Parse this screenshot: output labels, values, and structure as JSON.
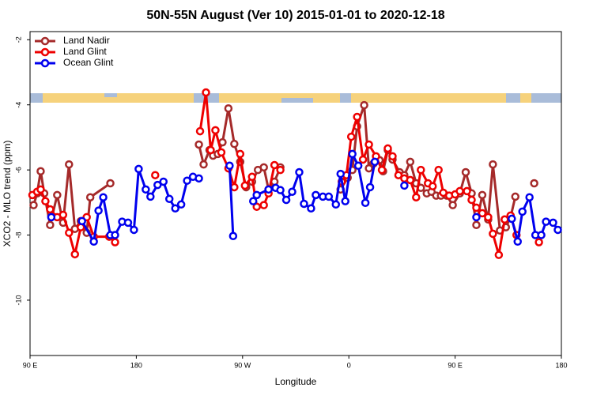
{
  "chart_data": {
    "type": "line",
    "title": "50N-55N August (Ver 10)   2015-01-01 to 2020-12-18",
    "x_label": "Longitude",
    "y_label": "XCO2 - MLO trend (ppm)",
    "xlim": [
      90,
      540
    ],
    "ylim": [
      -11.7,
      -1.75
    ],
    "xticks": [
      {
        "value": 90,
        "label": "90 E"
      },
      {
        "value": 180,
        "label": "180"
      },
      {
        "value": 270,
        "label": "90 W"
      },
      {
        "value": 360,
        "label": "0"
      },
      {
        "value": 450,
        "label": "90 E"
      },
      {
        "value": 540,
        "label": "180"
      }
    ],
    "yticks": [
      -2,
      -4,
      -6,
      -8,
      -10
    ],
    "legend": "top-left",
    "series": [
      {
        "name": "Land Nadir",
        "color": "#a52a2a",
        "x": [
          93,
          96,
          99,
          102,
          107,
          113,
          118,
          123,
          128,
          133,
          138,
          141,
          158,
          null,
          233,
          237,
          242,
          245,
          249,
          253,
          258,
          263,
          268,
          273,
          278,
          283,
          288,
          292,
          297,
          302,
          null,
          353,
          359,
          363,
          367,
          373,
          377,
          381,
          386,
          389,
          393,
          397,
          403,
          407,
          412,
          417,
          421,
          426,
          430,
          434,
          438,
          443,
          448,
          454,
          459,
          464,
          468,
          473,
          478,
          482,
          488,
          493,
          497,
          501,
          null,
          517
        ],
        "values": [
          -7.08,
          -6.72,
          -6.04,
          -6.72,
          -7.69,
          -6.77,
          -7.62,
          -5.83,
          -7.81,
          -7.57,
          -7.93,
          -6.84,
          -6.41,
          null,
          -5.22,
          -5.83,
          -5.39,
          -5.56,
          -5.51,
          -5.15,
          -4.11,
          -5.2,
          -5.75,
          -6.53,
          -6.36,
          -6.0,
          -5.92,
          -6.6,
          -6.36,
          -5.92,
          null,
          -6.6,
          -6.24,
          -6.0,
          -4.66,
          -4.01,
          -5.95,
          -5.8,
          -5.7,
          -6.04,
          -5.39,
          -5.68,
          -6.07,
          -6.16,
          -5.75,
          -6.41,
          -6.55,
          -6.72,
          -6.67,
          -6.79,
          -6.79,
          -6.79,
          -7.08,
          -6.72,
          -6.07,
          -6.72,
          -7.69,
          -6.77,
          -7.52,
          -5.83,
          -7.86,
          -7.76,
          -7.45,
          -6.82,
          null,
          -6.41
        ]
      },
      {
        "name": "Land Glint",
        "color": "#ee0000",
        "x": [
          92,
          96,
          99,
          103,
          107,
          113,
          118,
          123,
          128,
          133,
          138,
          144,
          157,
          162,
          null,
          196,
          null,
          234,
          239,
          243,
          247,
          252,
          258,
          263,
          268,
          272,
          278,
          282,
          288,
          292,
          297,
          302,
          null,
          354,
          358,
          362,
          367,
          372,
          377,
          383,
          388,
          393,
          397,
          402,
          407,
          412,
          417,
          421,
          427,
          431,
          436,
          440,
          445,
          450,
          454,
          460,
          464,
          468,
          473,
          478,
          482,
          487,
          492,
          497,
          502,
          null,
          521
        ],
        "values": [
          -6.77,
          -6.67,
          -6.6,
          -6.96,
          -7.21,
          -7.45,
          -7.38,
          -7.93,
          -8.59,
          -7.76,
          -7.45,
          -8.05,
          -8.05,
          -8.22,
          null,
          -6.16,
          null,
          -4.81,
          -3.62,
          -5.39,
          -4.78,
          -5.46,
          -5.95,
          -6.53,
          -5.51,
          -6.48,
          -6.21,
          -7.13,
          -7.08,
          -6.72,
          -5.85,
          -6.0,
          null,
          -6.36,
          -6.16,
          -4.98,
          -4.37,
          -5.68,
          -5.22,
          -5.58,
          -6.0,
          -5.34,
          -5.58,
          -6.16,
          -6.26,
          -6.31,
          -6.84,
          -6.0,
          -6.41,
          -6.5,
          -6.0,
          -6.7,
          -6.79,
          -6.75,
          -6.65,
          -6.65,
          -6.92,
          -7.16,
          -7.33,
          -7.45,
          -7.96,
          -8.61,
          -7.52,
          -7.4,
          -8.0,
          null,
          -8.22
        ]
      },
      {
        "name": "Ocean Glint",
        "color": "#0000ee",
        "x": [
          108,
          null,
          134,
          144,
          148,
          152,
          158,
          162,
          168,
          173,
          178,
          182,
          188,
          192,
          198,
          203,
          208,
          213,
          218,
          223,
          228,
          233,
          null,
          259,
          262,
          null,
          279,
          282,
          292,
          298,
          302,
          307,
          312,
          318,
          322,
          328,
          332,
          338,
          343,
          349,
          353,
          357,
          363,
          368,
          374,
          378,
          382,
          null,
          407,
          null,
          468,
          null,
          498,
          503,
          507,
          513,
          518,
          523,
          527,
          533,
          537
        ],
        "values": [
          -7.45,
          null,
          -7.57,
          -8.2,
          -7.25,
          -6.84,
          -8.0,
          -8.0,
          -7.59,
          -7.62,
          -7.84,
          -5.97,
          -6.6,
          -6.82,
          -6.46,
          -6.36,
          -6.89,
          -7.18,
          -7.06,
          -6.33,
          -6.21,
          -6.26,
          null,
          -5.87,
          -8.03,
          null,
          -6.96,
          -6.77,
          -6.6,
          -6.55,
          -6.62,
          -6.92,
          -6.67,
          -6.07,
          -7.04,
          -7.18,
          -6.77,
          -6.82,
          -6.82,
          -7.06,
          -6.12,
          -6.96,
          -5.51,
          -5.87,
          -7.01,
          -6.53,
          -5.75,
          null,
          -6.48,
          null,
          -7.45,
          null,
          -7.5,
          -8.2,
          -7.28,
          -6.84,
          -8.0,
          -8.0,
          -7.59,
          -7.62,
          -7.84
        ]
      }
    ]
  }
}
